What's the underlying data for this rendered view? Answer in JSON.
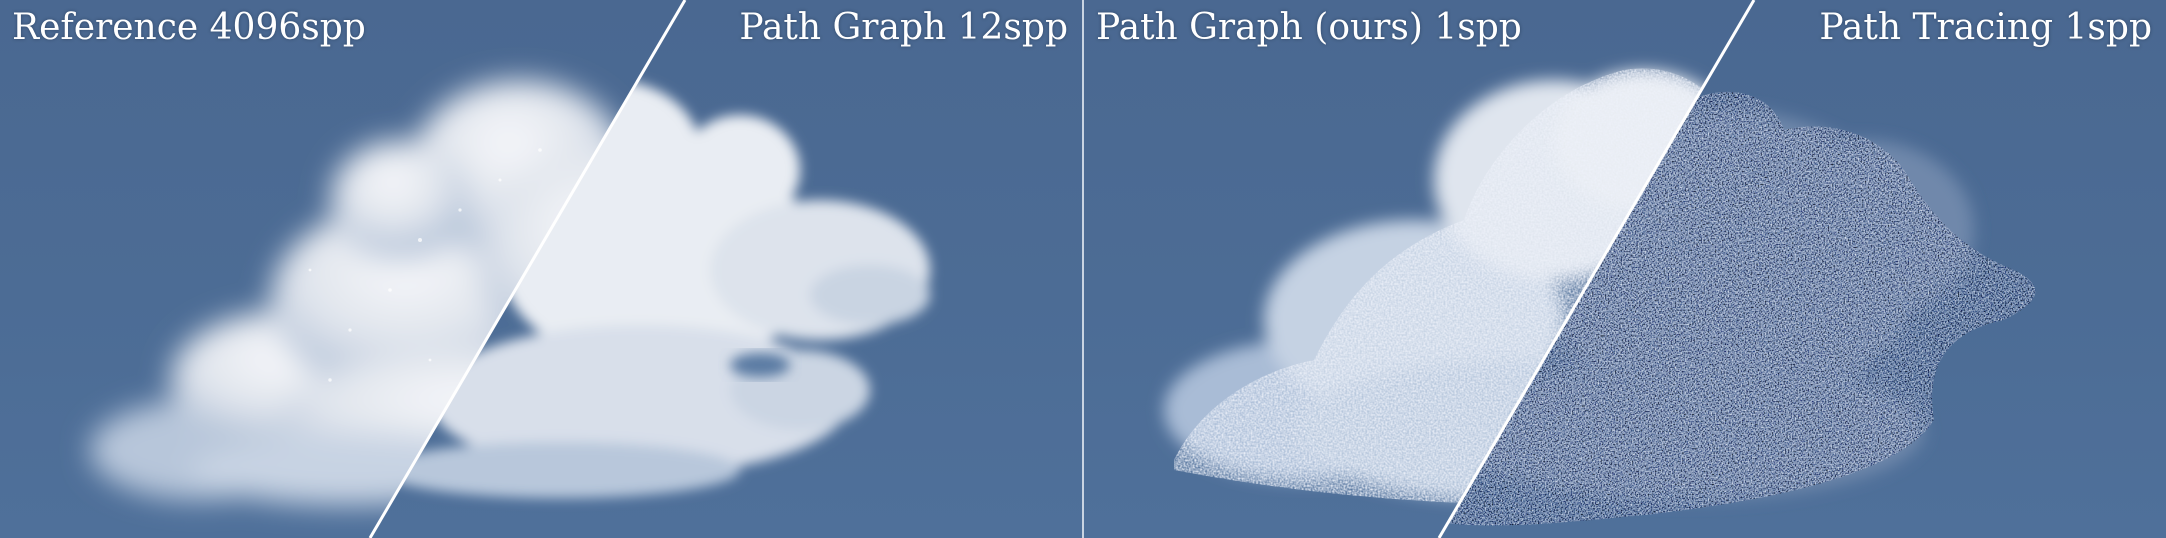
{
  "panels": [
    {
      "left_label": "Reference 4096spp",
      "right_label": "Path Graph 12spp"
    },
    {
      "left_label": "Path Graph (ours) 1spp",
      "right_label": "Path Tracing 1spp"
    }
  ],
  "colors": {
    "sky": "#4b6a94",
    "cloud_light": "#f2f4f8",
    "cloud_shadow": "#9fb3cf",
    "divider": "#ffffff"
  }
}
